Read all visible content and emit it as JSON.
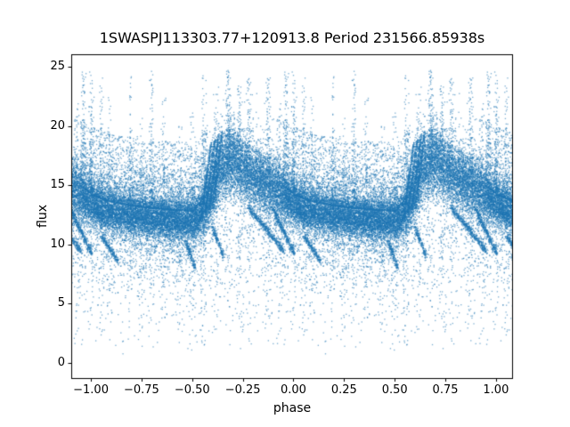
{
  "figure": {
    "background": "#ffffff",
    "spine_color": "#000000",
    "tick_color": "#000000",
    "text_color": "#000000"
  },
  "chart_data": {
    "type": "scatter",
    "title": "1SWASPJ113303.77+120913.8 Period 231566.85938s",
    "xlabel": "phase",
    "ylabel": "flux",
    "xlim": [
      -1.097,
      1.084
    ],
    "ylim": [
      -1.28,
      26.05
    ],
    "xticks": [
      -1.0,
      -0.75,
      -0.5,
      -0.25,
      0.0,
      0.25,
      0.5,
      0.75,
      1.0
    ],
    "xtick_labels": [
      "−1.00",
      "−0.75",
      "−0.50",
      "−0.25",
      "0.00",
      "0.25",
      "0.50",
      "0.75",
      "1.00"
    ],
    "yticks": [
      0,
      5,
      10,
      15,
      20,
      25
    ],
    "ytick_labels": [
      "0",
      "5",
      "10",
      "15",
      "20",
      "25"
    ],
    "grid": false,
    "legend": null,
    "marker_color": "#1f77b4",
    "marker_alpha": 0.6,
    "marker_size_px": 1.3,
    "description": "Phase-folded SuperWASP light curve; dense scatter of ~50000 flux measurements plotted twice (phase -1 to 1). Baseline band near flux 12, brightening ramp at phase 0.55-0.7 peaking near flux 19.5, slow decline to phase 1.0, vertical columns of outliers reaching flux 25 and sparse outliers down to flux 0.4.",
    "point_distribution": {
      "seed": 20,
      "period_base_range": [
        0,
        1
      ],
      "copies_at_offsets": [
        -1,
        0
      ],
      "extra_copy_right_if_below": 0.085,
      "extra_copy_left_if_above": 0.902,
      "mean_flux_profile": [
        [
          0.0,
          13.3
        ],
        [
          0.06,
          12.9
        ],
        [
          0.12,
          12.6
        ],
        [
          0.25,
          12.25
        ],
        [
          0.4,
          12.0
        ],
        [
          0.5,
          11.9
        ],
        [
          0.555,
          12.6
        ],
        [
          0.6,
          14.6
        ],
        [
          0.64,
          16.3
        ],
        [
          0.7,
          17.2
        ],
        [
          0.76,
          16.2
        ],
        [
          0.82,
          15.5
        ],
        [
          0.88,
          14.9
        ],
        [
          0.955,
          14.0
        ],
        [
          0.96,
          13.9
        ],
        [
          1.0,
          13.4
        ]
      ],
      "band": {
        "count": 18000,
        "sigma_low": 0.85,
        "sigma_high": 1.35,
        "high_range": [
          0.555,
          0.955
        ],
        "wide_fraction": 0.22,
        "wide_sigma": 2.2
      },
      "rise_trails": [
        {
          "from": [
            0.545,
            12.3
          ],
          "to": [
            0.595,
            18.6
          ],
          "count": 320
        },
        {
          "from": [
            0.565,
            12.6
          ],
          "to": [
            0.612,
            18.9
          ],
          "count": 320
        },
        {
          "from": [
            0.586,
            12.9
          ],
          "to": [
            0.63,
            19.3
          ],
          "count": 300
        },
        {
          "from": [
            0.603,
            13.2
          ],
          "to": [
            0.648,
            19.5
          ],
          "count": 280
        }
      ],
      "decline_trails": [
        {
          "from": [
            0.775,
            13.2
          ],
          "to": [
            0.955,
            9.4
          ],
          "count": 500
        },
        {
          "from": [
            0.9,
            12.9
          ],
          "to": [
            1.005,
            9.2
          ],
          "count": 330
        },
        {
          "from": [
            0.47,
            10.2
          ],
          "to": [
            0.515,
            8.0
          ],
          "count": 160
        },
        {
          "from": [
            0.055,
            10.6
          ],
          "to": [
            0.135,
            8.6
          ],
          "count": 240
        },
        {
          "from": [
            0.6,
            11.5
          ],
          "to": [
            0.655,
            9.0
          ],
          "count": 180
        }
      ],
      "trail_jitter": {
        "phase_sigma": 0.003,
        "flux_sigma": 0.16
      },
      "vertical_streaks": [
        {
          "phase": 0.0,
          "top": 24.8,
          "count": 130
        },
        {
          "phase": 0.05,
          "top": 24.3,
          "count": 70
        },
        {
          "phase": 0.09,
          "top": 22.5,
          "count": 45
        },
        {
          "phase": 0.195,
          "top": 24.6,
          "count": 90
        },
        {
          "phase": 0.25,
          "top": 21.5,
          "count": 40
        },
        {
          "phase": 0.3,
          "top": 24.8,
          "count": 95
        },
        {
          "phase": 0.36,
          "top": 23.0,
          "count": 55
        },
        {
          "phase": 0.44,
          "top": 20.5,
          "count": 30
        },
        {
          "phase": 0.5,
          "top": 21.5,
          "count": 35
        },
        {
          "phase": 0.555,
          "top": 24.6,
          "count": 85
        },
        {
          "phase": 0.615,
          "top": 22.8,
          "count": 55
        },
        {
          "phase": 0.68,
          "top": 24.8,
          "count": 115
        },
        {
          "phase": 0.735,
          "top": 23.5,
          "count": 60
        },
        {
          "phase": 0.78,
          "top": 24.0,
          "count": 70
        },
        {
          "phase": 0.875,
          "top": 24.5,
          "count": 85
        },
        {
          "phase": 0.93,
          "top": 22.0,
          "count": 45
        },
        {
          "phase": 0.965,
          "top": 24.8,
          "count": 105
        }
      ],
      "streak_params": {
        "phase_sigma": 0.006,
        "base_offset": 1.3,
        "power": 1.9
      },
      "low_outliers": {
        "count": 1250,
        "min_flux": 0.4,
        "power": 0.45,
        "ceiling": 11.8,
        "column_fraction": 0.38,
        "column_sigma": 0.01
      },
      "mid_scatter": {
        "count": 3000,
        "phase_ranges": [
          [
            0.0,
            0.575
          ],
          [
            0.95,
            1.0
          ]
        ],
        "above_offset": 0.9,
        "spread": 5.8,
        "power": 2.6
      }
    }
  }
}
